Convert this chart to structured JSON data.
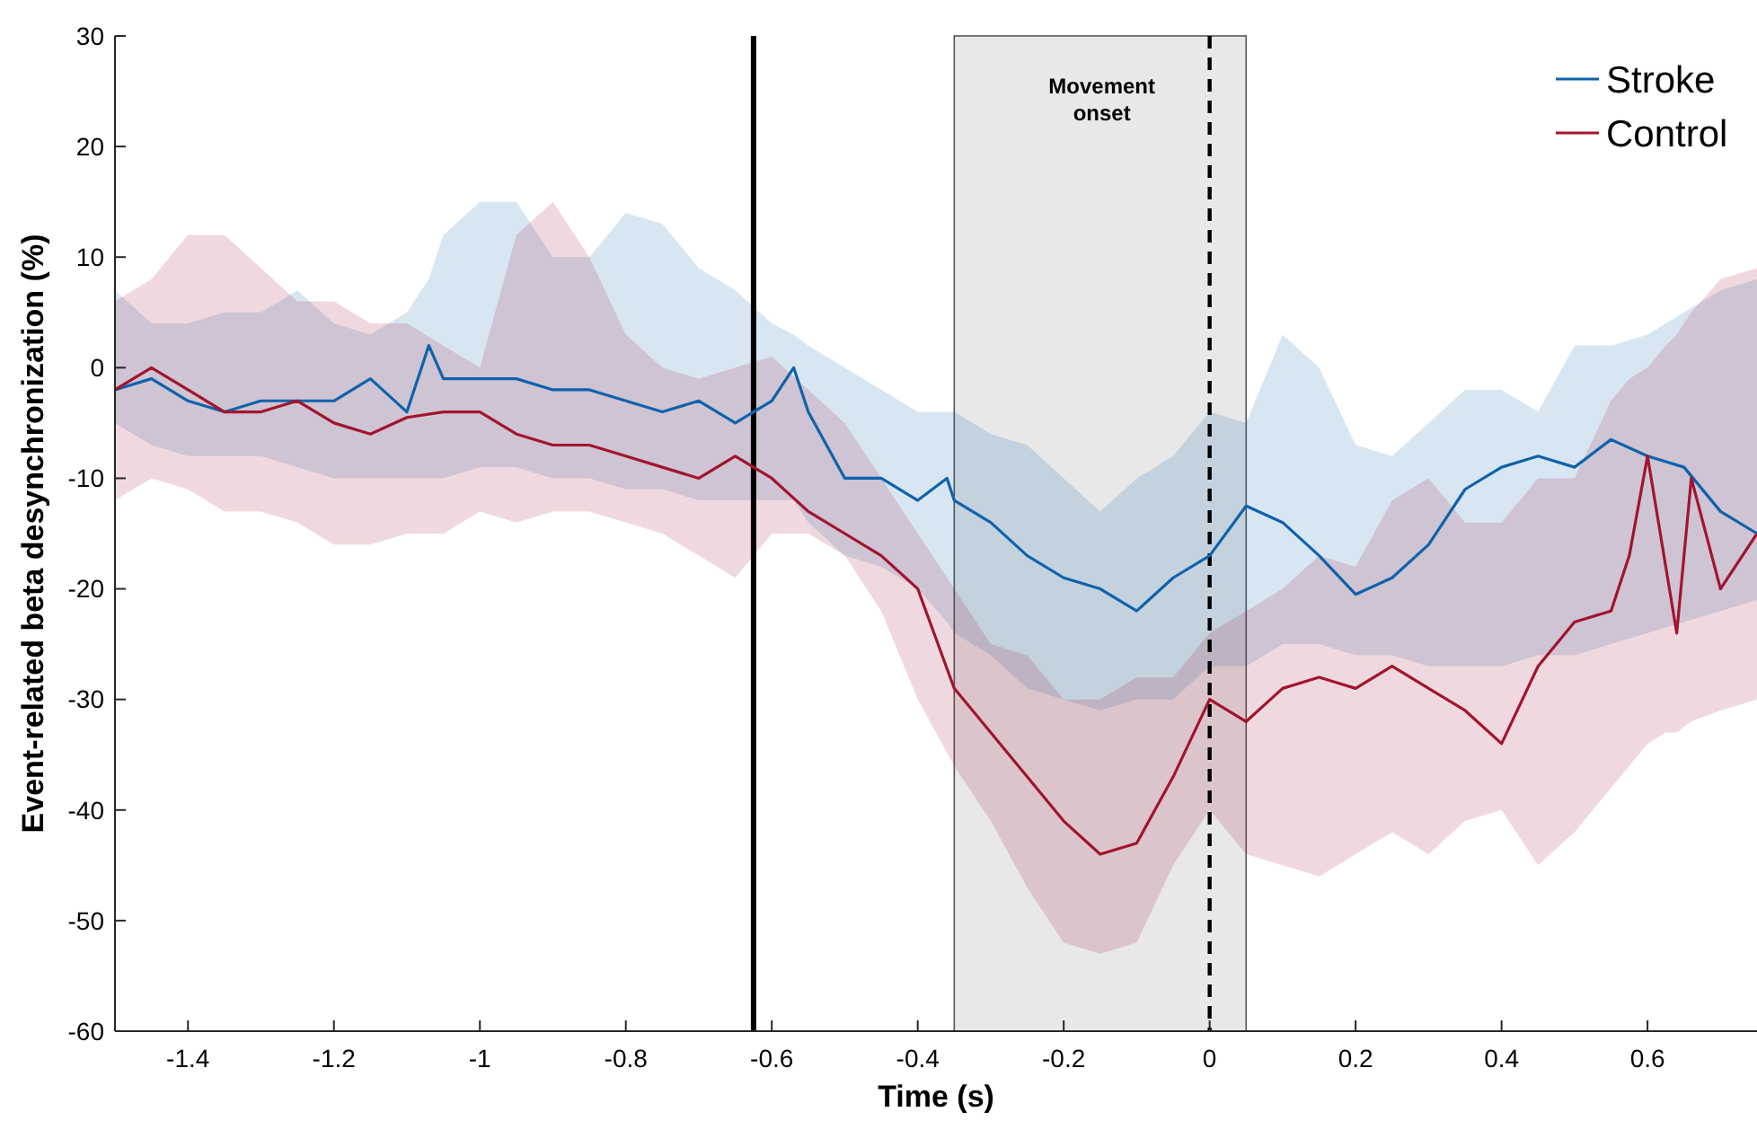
{
  "chart_data": {
    "type": "line",
    "xlabel": "Time (s)",
    "ylabel": "Event-related beta desynchronization (%)",
    "xlim": [
      -1.5,
      0.75
    ],
    "ylim": [
      -60,
      30
    ],
    "xticks": [
      -1.4,
      -1.2,
      -1,
      -0.8,
      -0.6,
      -0.4,
      -0.2,
      0,
      0.2,
      0.4,
      0.6
    ],
    "yticks": [
      -60,
      -50,
      -40,
      -30,
      -20,
      -10,
      0,
      10,
      20,
      30
    ],
    "grid": false,
    "legend": "top right",
    "marker": "none",
    "line_style": "solid",
    "ref_lines": [
      {
        "axis": "x",
        "value": -0.625,
        "color": "#000000",
        "line_style": "solid"
      },
      {
        "axis": "x",
        "value": 0,
        "label": "Movement onset",
        "color": "#000000",
        "line_style": "dashed"
      }
    ],
    "bands": [
      {
        "axis": "x",
        "from": -0.35,
        "to": 0.05,
        "color": "#e8e8e8"
      }
    ],
    "series": [
      {
        "name": "Stroke",
        "color": "#0f62ac",
        "x": [
          -1.5,
          -1.45,
          -1.4,
          -1.35,
          -1.3,
          -1.25,
          -1.2,
          -1.15,
          -1.1,
          -1.07,
          -1.05,
          -1.0,
          -0.95,
          -0.9,
          -0.85,
          -0.8,
          -0.75,
          -0.7,
          -0.65,
          -0.6,
          -0.57,
          -0.55,
          -0.5,
          -0.45,
          -0.4,
          -0.36,
          -0.35,
          -0.3,
          -0.25,
          -0.2,
          -0.15,
          -0.1,
          -0.05,
          0,
          0.05,
          0.1,
          0.15,
          0.2,
          0.25,
          0.3,
          0.35,
          0.4,
          0.45,
          0.5,
          0.55,
          0.6,
          0.65,
          0.7,
          0.75
        ],
        "values": [
          -2,
          -1,
          -3,
          -4,
          -3,
          -3,
          -3,
          -1,
          -4,
          2,
          -1,
          -1,
          -1,
          -2,
          -2,
          -3,
          -4,
          -3,
          -5,
          -3,
          0,
          -4,
          -10,
          -10,
          -12,
          -10,
          -12,
          -14,
          -17,
          -19,
          -20,
          -22,
          -19,
          -17,
          -12.5,
          -14,
          -17,
          -20.5,
          -19,
          -16,
          -11,
          -9,
          -8,
          -9,
          -6.5,
          -8,
          -9,
          -13,
          -15
        ],
        "upper": [
          7,
          4,
          4,
          5,
          5,
          7,
          4,
          3,
          5,
          8,
          12,
          15,
          15,
          10,
          10,
          14,
          13,
          9,
          7,
          4,
          3,
          2,
          0,
          -2,
          -4,
          -4,
          -4,
          -6,
          -7,
          -10,
          -13,
          -10,
          -8,
          -4,
          -5,
          3,
          0,
          -7,
          -8,
          -5,
          -2,
          -2,
          -4,
          2,
          2,
          3,
          5,
          7,
          8
        ],
        "lower": [
          -5,
          -7,
          -8,
          -8,
          -8,
          -9,
          -10,
          -10,
          -10,
          -10,
          -10,
          -9,
          -9,
          -10,
          -10,
          -11,
          -11,
          -12,
          -12,
          -12,
          -12,
          -14,
          -17,
          -18,
          -20,
          -23,
          -24,
          -26,
          -29,
          -30,
          -31,
          -30,
          -30,
          -27,
          -27,
          -25,
          -25,
          -26,
          -26,
          -27,
          -27,
          -27,
          -26,
          -26,
          -25,
          -24,
          -23,
          -22,
          -21
        ]
      },
      {
        "name": "Control",
        "color": "#a2142f",
        "x": [
          -1.5,
          -1.45,
          -1.4,
          -1.35,
          -1.3,
          -1.25,
          -1.2,
          -1.15,
          -1.1,
          -1.05,
          -1.0,
          -0.95,
          -0.9,
          -0.85,
          -0.8,
          -0.75,
          -0.7,
          -0.65,
          -0.6,
          -0.55,
          -0.5,
          -0.45,
          -0.4,
          -0.35,
          -0.3,
          -0.25,
          -0.2,
          -0.15,
          -0.1,
          -0.05,
          0,
          0.05,
          0.1,
          0.15,
          0.2,
          0.25,
          0.3,
          0.35,
          0.4,
          0.45,
          0.5,
          0.55,
          0.575,
          0.6,
          0.625,
          0.64,
          0.66,
          0.7,
          0.75
        ],
        "values": [
          -2,
          0,
          -2,
          -4,
          -4,
          -3,
          -5,
          -6,
          -4.5,
          -4,
          -4,
          -6,
          -7,
          -7,
          -8,
          -9,
          -10,
          -8,
          -10,
          -13,
          -15,
          -17,
          -20,
          -29,
          -33,
          -37,
          -41,
          -44,
          -43,
          -37,
          -30,
          -32,
          -29,
          -28,
          -29,
          -27,
          -29,
          -31,
          -34,
          -27,
          -23,
          -22,
          -17,
          -8,
          -18,
          -24,
          -10,
          -20,
          -15
        ],
        "upper": [
          6,
          8,
          12,
          12,
          9,
          6,
          6,
          4,
          4,
          2,
          0,
          12,
          15,
          10,
          3,
          0,
          -1,
          0,
          1,
          -2,
          -5,
          -10,
          -15,
          -20,
          -25,
          -26,
          -30,
          -30,
          -28,
          -28,
          -24,
          -22,
          -20,
          -17,
          -18,
          -12,
          -10,
          -14,
          -14,
          -10,
          -10,
          -3,
          -1,
          0,
          2,
          3,
          5,
          8,
          9
        ],
        "lower": [
          -12,
          -10,
          -11,
          -13,
          -13,
          -14,
          -16,
          -16,
          -15,
          -15,
          -13,
          -14,
          -13,
          -13,
          -14,
          -15,
          -17,
          -19,
          -15,
          -15,
          -17,
          -22,
          -30,
          -36,
          -41,
          -47,
          -52,
          -53,
          -52,
          -45,
          -40,
          -44,
          -45,
          -46,
          -44,
          -42,
          -44,
          -41,
          -40,
          -45,
          -42,
          -38,
          -36,
          -34,
          -33,
          -33,
          -32,
          -31,
          -30
        ]
      }
    ]
  }
}
